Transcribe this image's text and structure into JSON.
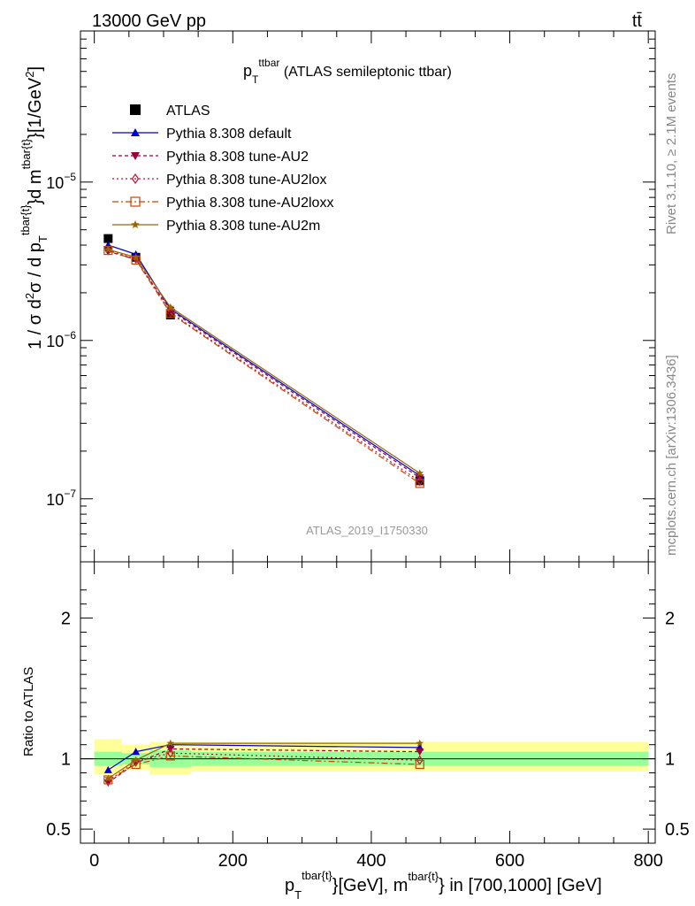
{
  "header": {
    "energy_label": "13000 GeV pp",
    "process_label": "tt̄"
  },
  "side_labels": {
    "rivet": "Rivet 3.1.10, ≥ 2.1M events",
    "mcplots": "mcplots.cern.ch [arXiv:1306.3436]"
  },
  "chart_data": [
    {
      "type": "line",
      "title_main": "p",
      "title_sub": "T",
      "title_sup": "ttbar",
      "title_rest": " (ATLAS semileptonic ttbar)",
      "watermark": "ATLAS_2019_I1750330",
      "y_scale": "log",
      "ylim": [
        4e-08,
        9e-05
      ],
      "xlim": [
        -20,
        810
      ],
      "ylabel": "1 / σ d²σ / d p_T^{tbar{t}} d m^{tbar{t}} [1/GeV²]",
      "y_tick_labels": [
        {
          "value": 1e-05,
          "mant": "10",
          "exp": "−5"
        },
        {
          "value": 1e-06,
          "mant": "10",
          "exp": "−6"
        },
        {
          "value": 1e-07,
          "mant": "10",
          "exp": "−7"
        }
      ],
      "x": [
        20,
        60,
        110,
        470
      ],
      "series": [
        {
          "name": "ATLAS",
          "color": "#000000",
          "marker": "square-filled",
          "dash": "none",
          "values": [
            4.4e-06,
            3.35e-06,
            1.45e-06,
            1.3e-07
          ],
          "ratio": [
            1.0,
            1.0,
            1.0,
            1.0
          ]
        },
        {
          "name": "Pythia 8.308 default",
          "color": "#0000cc",
          "marker": "triangle-up-filled",
          "dash": "none",
          "values": [
            4e-06,
            3.5e-06,
            1.58e-06,
            1.4e-07
          ],
          "ratio": [
            0.92,
            1.05,
            1.1,
            1.08
          ]
        },
        {
          "name": "Pythia 8.308 tune-AU2",
          "color": "#990033",
          "marker": "triangle-down-filled",
          "dash": "4,3",
          "values": [
            3.65e-06,
            3.25e-06,
            1.55e-06,
            1.36e-07
          ],
          "ratio": [
            0.83,
            0.97,
            1.07,
            1.05
          ]
        },
        {
          "name": "Pythia 8.308 tune-AU2lox",
          "color": "#bb1133",
          "marker": "diamond-open",
          "dash": "2,3",
          "values": [
            3.7e-06,
            3.28e-06,
            1.5e-06,
            1.29e-07
          ],
          "ratio": [
            0.84,
            0.98,
            1.04,
            0.99
          ]
        },
        {
          "name": "Pythia 8.308 tune-AU2loxx",
          "color": "#cc4400",
          "marker": "square-open",
          "dash": "7,3,2,3",
          "values": [
            3.7e-06,
            3.22e-06,
            1.48e-06,
            1.25e-07
          ],
          "ratio": [
            0.85,
            0.96,
            1.02,
            0.96
          ]
        },
        {
          "name": "Pythia 8.308 tune-AU2m",
          "color": "#996600",
          "marker": "star-filled",
          "dash": "none",
          "values": [
            3.75e-06,
            3.35e-06,
            1.62e-06,
            1.45e-07
          ],
          "ratio": [
            0.86,
            0.99,
            1.11,
            1.11
          ]
        }
      ],
      "ratio_panel": {
        "ylabel": "Ratio to ATLAS",
        "ylim": [
          0.4,
          2.4
        ],
        "y_ticks": [
          {
            "value": 2,
            "label": "2"
          },
          {
            "value": 1,
            "label": "1"
          },
          {
            "value": 0.5,
            "label": "0.5"
          }
        ],
        "x_ticks": [
          {
            "value": 0,
            "label": "0"
          },
          {
            "value": 200,
            "label": "200"
          },
          {
            "value": 400,
            "label": "400"
          },
          {
            "value": 600,
            "label": "600"
          },
          {
            "value": 800,
            "label": "800"
          }
        ],
        "bands": [
          {
            "x0": 0,
            "x1": 40,
            "green": [
              0.95,
              1.05
            ],
            "yellow": [
              0.89,
              1.14
            ]
          },
          {
            "x0": 40,
            "x1": 80,
            "green": [
              0.96,
              1.04
            ],
            "yellow": [
              0.92,
              1.1
            ]
          },
          {
            "x0": 80,
            "x1": 140,
            "green": [
              0.94,
              1.06
            ],
            "yellow": [
              0.89,
              1.12
            ]
          },
          {
            "x0": 140,
            "x1": 800,
            "green": [
              0.95,
              1.05
            ],
            "yellow": [
              0.91,
              1.12
            ]
          }
        ]
      },
      "xlabel_parts": {
        "p": "p",
        "p_sub": "T",
        "p_sup": "tbar{t}",
        "mid": "}[GeV], m",
        "m_sup": "tbar{t}",
        "rest": "} in [700,1000] [GeV]"
      }
    }
  ]
}
